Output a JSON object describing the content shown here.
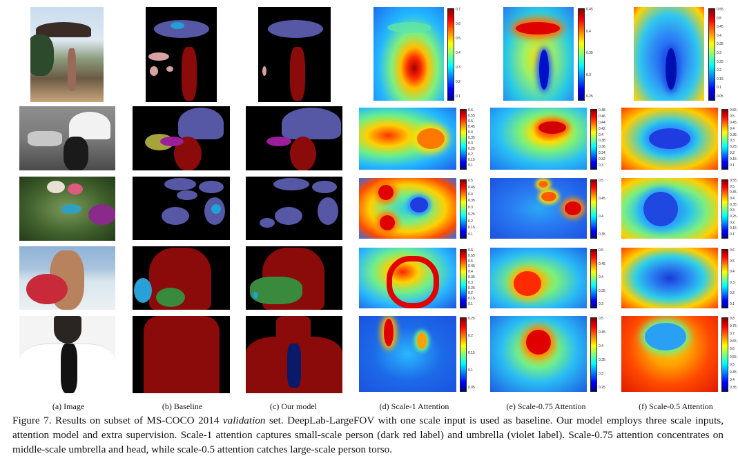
{
  "subfigure_labels": [
    "(a) Image",
    "(b) Baseline",
    "(c) Our model",
    "(d) Scale-1 Attention",
    "(e) Scale-0.75 Attention",
    "(f) Scale-0.5 Attention"
  ],
  "caption": {
    "figure_label": "Figure 7.",
    "text_before_italic": " Results on subset of MS-COCO 2014 ",
    "italic_text": "validation",
    "text_after_italic": " set. DeepLab-LargeFOV with one scale input is used as baseline. Our model employs three scale inputs, attention model and extra supervision. Scale-1 attention captures small-scale person (dark red label) and umbrella (violet label). Scale-0.75 attention concentrates on middle-scale umbrella and head, while scale-0.5 attention catches large-scale person torso."
  },
  "colorbar_ticks": [
    [
      [
        "0.7",
        "0.6",
        "0.5",
        "0.4",
        "0.3",
        "0.2",
        "0.1"
      ],
      [
        "0.45",
        "0.4",
        "0.35",
        "0.3",
        "0.25"
      ],
      [
        "0.55",
        "0.5",
        "0.45",
        "0.4",
        "0.35",
        "0.3",
        "0.25",
        "0.2",
        "0.15",
        "0.1",
        "0.05"
      ]
    ],
    [
      [
        "0.6",
        "0.55",
        "0.5",
        "0.45",
        "0.4",
        "0.35",
        "0.3",
        "0.25",
        "0.2",
        "0.15",
        "0.1"
      ],
      [
        "0.48",
        "0.46",
        "0.44",
        "0.42",
        "0.4",
        "0.38",
        "0.36",
        "0.34",
        "0.32",
        "0.3"
      ],
      [
        "0.55",
        "0.5",
        "0.45",
        "0.4",
        "0.35",
        "0.3",
        "0.25",
        "0.2",
        "0.15",
        "0.1"
      ]
    ],
    [
      [
        "0.5",
        "0.45",
        "0.4",
        "0.35",
        "0.3",
        "0.25",
        "0.2",
        "0.15",
        "0.1"
      ],
      [
        "0.5",
        "0.45",
        "0.4",
        "0.35"
      ],
      [
        "0.55",
        "0.5",
        "0.45",
        "0.4",
        "0.35",
        "0.3",
        "0.25",
        "0.2",
        "0.15",
        "0.1"
      ]
    ],
    [
      [
        "0.6",
        "0.55",
        "0.5",
        "0.45",
        "0.4",
        "0.35",
        "0.3",
        "0.25",
        "0.2",
        "0.15",
        "0.1"
      ],
      [
        "0.5",
        "0.45",
        "0.4",
        "0.35",
        "0.3"
      ],
      [
        "0.6",
        "0.5",
        "0.4",
        "0.3",
        "0.2",
        "0.1"
      ]
    ],
    [
      [
        "0.25",
        "0.2",
        "0.15",
        "0.1",
        "0.05"
      ],
      [
        "0.5",
        "0.45",
        "0.4",
        "0.35",
        "0.3",
        "0.25"
      ],
      [
        "0.8",
        "0.75",
        "0.7",
        "0.65",
        "0.6",
        "0.55",
        "0.5",
        "0.45",
        "0.4",
        "0.35"
      ]
    ]
  ],
  "colors": {
    "person_label": "#8b0a0a",
    "umbrella_label": "#5658a6",
    "surfboard_label": "#3a8a3e",
    "tie_label": "#0a1a6a",
    "background_label": "#000000"
  }
}
